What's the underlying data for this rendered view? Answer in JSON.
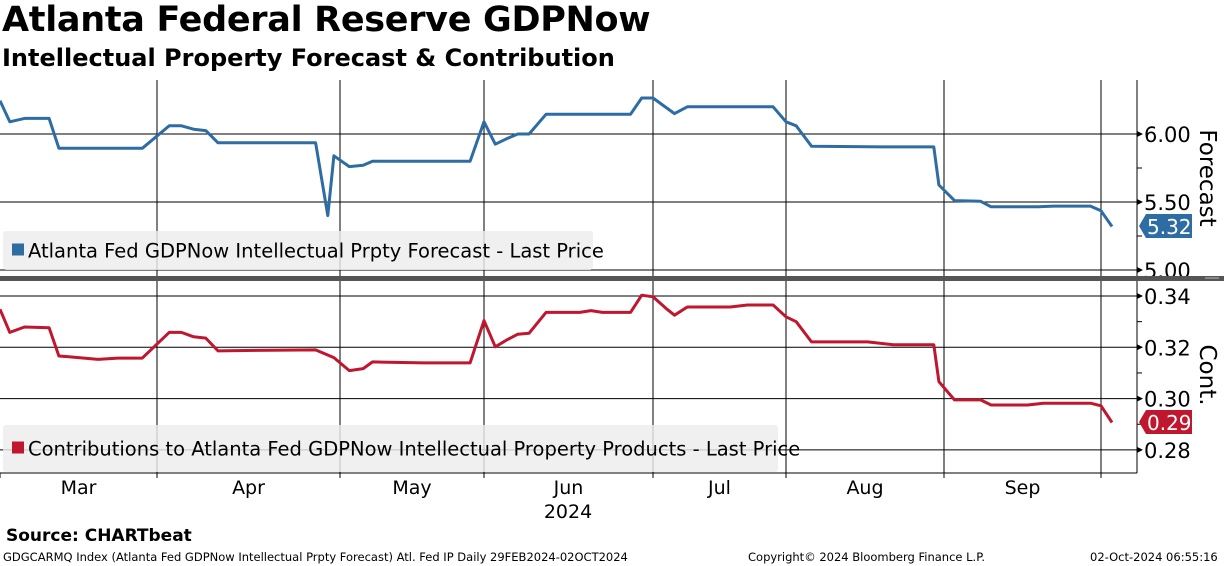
{
  "header": {
    "title": "Atlanta Federal Reserve GDPNow",
    "subtitle": "Intellectual Property Forecast & Contribution"
  },
  "chart_data": [
    {
      "type": "line",
      "panel": "top",
      "ylabel": "Forecast",
      "ylim": [
        4.94,
        6.4
      ],
      "yticks": [
        "5.00",
        "5.50",
        "6.00"
      ],
      "ytick_values": [
        5.0,
        5.5,
        6.0
      ],
      "grid": true,
      "legend": "Atlanta Fed GDPNow Intellectual Prpty Forecast - Last Price",
      "legend_placement": "bottom-left",
      "last_value_label": "5.32",
      "color": "#2e6ca4",
      "series": [
        {
          "name": "Atlanta Fed GDPNow Intellectual Prpty Forecast - Last Price",
          "points": [
            [
              "2024-02-29",
              6.245
            ],
            [
              "2024-03-02",
              6.09
            ],
            [
              "2024-03-05",
              6.115
            ],
            [
              "2024-03-10",
              6.115
            ],
            [
              "2024-03-12",
              5.895
            ],
            [
              "2024-03-29",
              5.895
            ],
            [
              "2024-04-03",
              6.06
            ],
            [
              "2024-04-05",
              6.06
            ],
            [
              "2024-04-07",
              6.035
            ],
            [
              "2024-04-09",
              6.025
            ],
            [
              "2024-04-11",
              5.935
            ],
            [
              "2024-04-27",
              5.935
            ],
            [
              "2024-04-29",
              5.4
            ],
            [
              "2024-04-30",
              5.84
            ],
            [
              "2024-05-03",
              5.76
            ],
            [
              "2024-05-06",
              5.77
            ],
            [
              "2024-05-08",
              5.8
            ],
            [
              "2024-05-29",
              5.8
            ],
            [
              "2024-06-01",
              6.09
            ],
            [
              "2024-06-03",
              5.925
            ],
            [
              "2024-06-05",
              5.965
            ],
            [
              "2024-06-07",
              6.0
            ],
            [
              "2024-06-09",
              6.0
            ],
            [
              "2024-06-12",
              6.145
            ],
            [
              "2024-06-27",
              6.145
            ],
            [
              "2024-06-29",
              6.265
            ],
            [
              "2024-07-01",
              6.265
            ],
            [
              "2024-07-06",
              6.15
            ],
            [
              "2024-07-09",
              6.2
            ],
            [
              "2024-07-29",
              6.2
            ],
            [
              "2024-08-01",
              6.09
            ],
            [
              "2024-08-03",
              6.06
            ],
            [
              "2024-08-06",
              5.91
            ],
            [
              "2024-08-20",
              5.905
            ],
            [
              "2024-08-30",
              5.905
            ],
            [
              "2024-08-31",
              5.625
            ],
            [
              "2024-09-03",
              5.51
            ],
            [
              "2024-09-08",
              5.505
            ],
            [
              "2024-09-10",
              5.465
            ],
            [
              "2024-09-19",
              5.465
            ],
            [
              "2024-09-22",
              5.47
            ],
            [
              "2024-09-29",
              5.47
            ],
            [
              "2024-10-01",
              5.435
            ],
            [
              "2024-10-02",
              5.32
            ]
          ]
        }
      ]
    },
    {
      "type": "line",
      "panel": "bottom",
      "ylabel": "Cont.",
      "ylim": [
        0.271,
        0.346
      ],
      "yticks": [
        "0.28",
        "0.30",
        "0.32",
        "0.34"
      ],
      "ytick_values": [
        0.28,
        0.3,
        0.32,
        0.34
      ],
      "grid": true,
      "legend": "Contributions to Atlanta Fed GDPNow Intellectual Property Products - Last Price",
      "legend_placement": "bottom-left",
      "last_value_label": "0.29",
      "color": "#c0162e",
      "series": [
        {
          "name": "Contributions to Atlanta Fed GDPNow Intellectual Property Products - Last Price",
          "points": [
            [
              "2024-02-29",
              0.3348
            ],
            [
              "2024-03-02",
              0.3258
            ],
            [
              "2024-03-05",
              0.3279
            ],
            [
              "2024-03-10",
              0.3276
            ],
            [
              "2024-03-12",
              0.3166
            ],
            [
              "2024-03-14",
              0.3163
            ],
            [
              "2024-03-20",
              0.3153
            ],
            [
              "2024-03-24",
              0.3158
            ],
            [
              "2024-03-29",
              0.3158
            ],
            [
              "2024-04-03",
              0.3258
            ],
            [
              "2024-04-05",
              0.3258
            ],
            [
              "2024-04-07",
              0.3241
            ],
            [
              "2024-04-09",
              0.3236
            ],
            [
              "2024-04-11",
              0.3186
            ],
            [
              "2024-04-17",
              0.3188
            ],
            [
              "2024-04-27",
              0.319
            ],
            [
              "2024-04-30",
              0.316
            ],
            [
              "2024-05-03",
              0.3109
            ],
            [
              "2024-05-06",
              0.3117
            ],
            [
              "2024-05-08",
              0.3143
            ],
            [
              "2024-05-19",
              0.3139
            ],
            [
              "2024-05-29",
              0.3139
            ],
            [
              "2024-06-01",
              0.3304
            ],
            [
              "2024-06-03",
              0.3202
            ],
            [
              "2024-06-05",
              0.3228
            ],
            [
              "2024-06-07",
              0.3251
            ],
            [
              "2024-06-09",
              0.3255
            ],
            [
              "2024-06-12",
              0.3336
            ],
            [
              "2024-06-18",
              0.3336
            ],
            [
              "2024-06-20",
              0.3343
            ],
            [
              "2024-06-22",
              0.3336
            ],
            [
              "2024-06-27",
              0.3336
            ],
            [
              "2024-06-29",
              0.3403
            ],
            [
              "2024-07-01",
              0.3397
            ],
            [
              "2024-07-04",
              0.3352
            ],
            [
              "2024-07-06",
              0.3325
            ],
            [
              "2024-07-09",
              0.3357
            ],
            [
              "2024-07-19",
              0.3357
            ],
            [
              "2024-07-23",
              0.3365
            ],
            [
              "2024-07-29",
              0.3365
            ],
            [
              "2024-08-01",
              0.3319
            ],
            [
              "2024-08-03",
              0.33
            ],
            [
              "2024-08-06",
              0.3221
            ],
            [
              "2024-08-17",
              0.3221
            ],
            [
              "2024-08-22",
              0.321
            ],
            [
              "2024-08-30",
              0.321
            ],
            [
              "2024-08-31",
              0.3066
            ],
            [
              "2024-09-03",
              0.2995
            ],
            [
              "2024-09-08",
              0.2995
            ],
            [
              "2024-09-10",
              0.2975
            ],
            [
              "2024-09-17",
              0.2975
            ],
            [
              "2024-09-20",
              0.2982
            ],
            [
              "2024-09-29",
              0.2982
            ],
            [
              "2024-10-01",
              0.2972
            ],
            [
              "2024-10-02",
              0.2907
            ]
          ]
        }
      ]
    }
  ],
  "xaxis": {
    "months": [
      "Mar",
      "Apr",
      "May",
      "Jun",
      "Jul",
      "Aug",
      "Sep"
    ],
    "year": "2024"
  },
  "footer": {
    "source": "Source: CHARTbeat",
    "index_info": "GDGCARMQ Index (Atlanta Fed GDPNow Intellectual Prpty Forecast) Atl. Fed IP  Daily 29FEB2024-02OCT2024",
    "copyright": "Copyright© 2024 Bloomberg Finance L.P.",
    "timestamp": "02-Oct-2024 06:55:16"
  }
}
